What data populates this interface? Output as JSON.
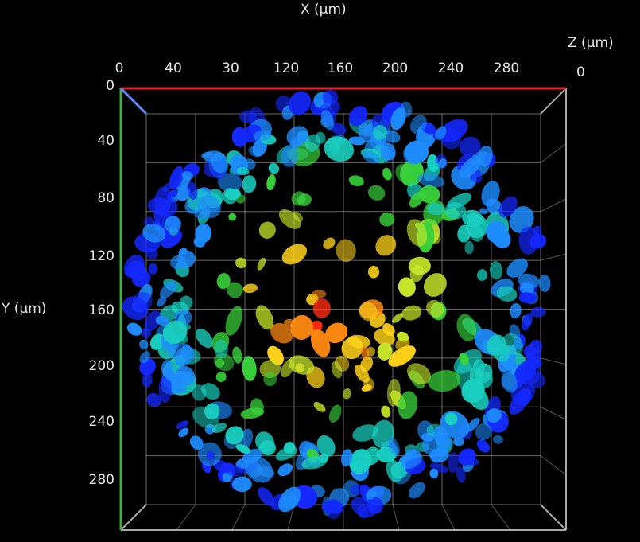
{
  "axes": {
    "x_title": "X (µm)",
    "y_title": "Y (µm)",
    "z_title": "Z (µm)",
    "z_tick": "0",
    "x_ticks": [
      "0",
      "40",
      "30",
      "120",
      "160",
      "200",
      "240",
      "280"
    ],
    "y_ticks": [
      "0",
      "40",
      "80",
      "120",
      "160",
      "200",
      "240",
      "280"
    ],
    "colors": {
      "x_axis": "#e0262a",
      "y_axis": "#3fae3f",
      "z_axis": "#5b8cff",
      "grid": "#bdbdbd"
    }
  },
  "colormap": [
    "#1428ff",
    "#1e8cff",
    "#19d0c0",
    "#39d23a",
    "#c6e52a",
    "#ffd21a",
    "#ff8a12",
    "#ff2a14"
  ]
}
